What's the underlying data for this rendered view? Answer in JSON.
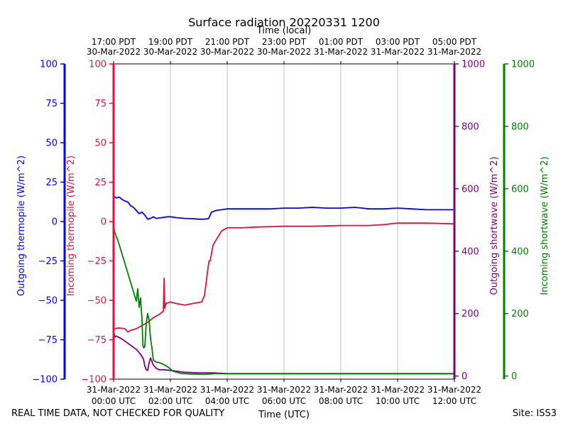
{
  "chart_data": {
    "type": "line",
    "title": "Surface radiation 20220331 1200",
    "top_axis_label": "Time (local)",
    "xlabel": "Time (UTC)",
    "x_unit": "hours since 31-Mar-2022 00:00 UTC",
    "xlim": [
      0,
      12
    ],
    "grid": "vertical",
    "bottom_ticks": [
      {
        "x": 0,
        "line1": "31-Mar-2022",
        "line2": "00:00 UTC"
      },
      {
        "x": 2,
        "line1": "31-Mar-2022",
        "line2": "02:00 UTC"
      },
      {
        "x": 4,
        "line1": "31-Mar-2022",
        "line2": "04:00 UTC"
      },
      {
        "x": 6,
        "line1": "31-Mar-2022",
        "line2": "06:00 UTC"
      },
      {
        "x": 8,
        "line1": "31-Mar-2022",
        "line2": "08:00 UTC"
      },
      {
        "x": 10,
        "line1": "31-Mar-2022",
        "line2": "10:00 UTC"
      },
      {
        "x": 12,
        "line1": "31-Mar-2022",
        "line2": "12:00 UTC"
      }
    ],
    "top_ticks": [
      {
        "x": 0,
        "line1": "17:00 PDT",
        "line2": "30-Mar-2022"
      },
      {
        "x": 2,
        "line1": "19:00 PDT",
        "line2": "30-Mar-2022"
      },
      {
        "x": 4,
        "line1": "21:00 PDT",
        "line2": "30-Mar-2022"
      },
      {
        "x": 6,
        "line1": "23:00 PDT",
        "line2": "30-Mar-2022"
      },
      {
        "x": 8,
        "line1": "01:00 PDT",
        "line2": "31-Mar-2022"
      },
      {
        "x": 10,
        "line1": "03:00 PDT",
        "line2": "31-Mar-2022"
      },
      {
        "x": 12,
        "line1": "05:00 PDT",
        "line2": "31-Mar-2022"
      }
    ],
    "axes": [
      {
        "id": "outgoing_thermopile",
        "label": "Outgoing thermopile (W/m^2)",
        "color": "#0000ff",
        "side": "left-outer",
        "ylim": [
          -100,
          100
        ],
        "ticks": [
          -100,
          -75,
          -50,
          -25,
          0,
          25,
          50,
          75,
          100
        ]
      },
      {
        "id": "incoming_thermopile",
        "label": "Incoming thermopile (W/m^2)",
        "color": "#dc143c",
        "side": "left-inner",
        "ylim": [
          -100,
          100
        ],
        "ticks": [
          -100,
          -75,
          -50,
          -25,
          0,
          25,
          50,
          75,
          100
        ]
      },
      {
        "id": "outgoing_shortwave",
        "label": "Outgoing shortwave (W/m^2)",
        "color": "#800080",
        "side": "right-inner",
        "ylim": [
          -10,
          1000
        ],
        "ticks": [
          0,
          200,
          400,
          600,
          800,
          1000
        ]
      },
      {
        "id": "incoming_shortwave",
        "label": "Incoming shortwave (W/m^2)",
        "color": "#008000",
        "side": "right-outer",
        "ylim": [
          -10,
          1000
        ],
        "ticks": [
          0,
          200,
          400,
          600,
          800,
          1000
        ]
      }
    ],
    "series": [
      {
        "name": "Outgoing thermopile",
        "axis": "outgoing_thermopile",
        "color": "#0000ff",
        "x": [
          0,
          0.1,
          0.2,
          0.3,
          0.4,
          0.5,
          0.6,
          0.7,
          0.8,
          0.9,
          1.0,
          1.1,
          1.2,
          1.3,
          1.4,
          1.5,
          1.7,
          1.9,
          2.0,
          2.2,
          2.5,
          2.8,
          3.0,
          3.2,
          3.35,
          3.45,
          3.6,
          3.8,
          4.0,
          4.5,
          5.0,
          5.5,
          6.0,
          6.5,
          7.0,
          7.5,
          8.0,
          8.5,
          9.0,
          9.5,
          10.0,
          10.5,
          11.0,
          11.5,
          12.0
        ],
        "values": [
          16,
          15,
          15.5,
          14,
          13,
          12.5,
          10,
          9,
          7,
          5,
          6,
          4,
          1.5,
          2,
          3,
          2,
          2.5,
          3,
          3,
          2.5,
          2,
          1.8,
          1.5,
          1.5,
          2,
          6,
          7,
          7.5,
          8,
          8,
          8,
          8,
          8.5,
          8.5,
          9,
          8.5,
          8.5,
          9,
          8,
          8,
          8.5,
          8,
          7.5,
          7.5,
          7.5
        ]
      },
      {
        "name": "Incoming thermopile",
        "axis": "incoming_thermopile",
        "color": "#dc143c",
        "x": [
          0,
          0.2,
          0.4,
          0.5,
          0.6,
          0.8,
          1.0,
          1.2,
          1.4,
          1.6,
          1.75,
          1.78,
          1.8,
          1.85,
          2.0,
          2.2,
          2.5,
          2.8,
          3.1,
          3.2,
          3.25,
          3.32,
          3.36,
          3.4,
          3.5,
          3.6,
          3.7,
          3.8,
          3.9,
          4.0,
          4.5,
          5.0,
          6.0,
          7.0,
          8.0,
          9.0,
          9.5,
          10.0,
          11.0,
          12.0
        ],
        "values": [
          -68,
          -67.5,
          -68,
          -70,
          -69,
          -68,
          -66,
          -64,
          -61,
          -59,
          -57,
          -36,
          -55,
          -52,
          -51,
          -52,
          -53,
          -52,
          -51,
          -47,
          -40,
          -30,
          -25,
          -25,
          -15,
          -12,
          -9,
          -6,
          -5,
          -4,
          -4,
          -3.5,
          -3,
          -3,
          -2.5,
          -2.5,
          -2,
          -1,
          -1,
          -1.5
        ]
      },
      {
        "name": "Outgoing shortwave",
        "axis": "outgoing_shortwave",
        "color": "#800080",
        "x": [
          0,
          0.05,
          0.1,
          0.3,
          0.5,
          0.7,
          0.8,
          0.9,
          0.95,
          1.0,
          1.05,
          1.1,
          1.15,
          1.2,
          1.25,
          1.3,
          1.4,
          1.5,
          1.6,
          1.8,
          2.0,
          2.5,
          3.0,
          3.5,
          4.0,
          6.0,
          8.0,
          10.0,
          12.0
        ],
        "values": [
          140,
          125,
          128,
          118,
          105,
          92,
          85,
          75,
          70,
          62,
          55,
          32,
          20,
          18,
          42,
          58,
          35,
          25,
          20,
          20,
          18,
          12,
          10,
          10,
          8,
          8,
          8,
          8,
          8
        ]
      },
      {
        "name": "Incoming shortwave",
        "axis": "incoming_shortwave",
        "color": "#008000",
        "x": [
          0,
          0.04,
          0.07,
          0.1,
          0.13,
          0.2,
          0.4,
          0.6,
          0.8,
          0.85,
          0.9,
          0.95,
          1.0,
          1.03,
          1.06,
          1.1,
          1.15,
          1.2,
          1.25,
          1.3,
          1.35,
          1.4,
          1.5,
          1.7,
          1.9,
          2.1,
          2.4,
          2.8,
          3.2,
          3.6,
          4.0,
          6.0,
          8.0,
          10.0,
          12.0
        ],
        "values": [
          480,
          460,
          455,
          445,
          440,
          420,
          360,
          300,
          240,
          280,
          220,
          250,
          180,
          100,
          90,
          95,
          170,
          200,
          180,
          120,
          90,
          50,
          45,
          40,
          30,
          15,
          8,
          6,
          5,
          8,
          7,
          7,
          7,
          7,
          7
        ]
      }
    ]
  },
  "footer": {
    "left_note": "REAL TIME DATA, NOT CHECKED FOR QUALITY",
    "site": "Site: ISS3"
  }
}
